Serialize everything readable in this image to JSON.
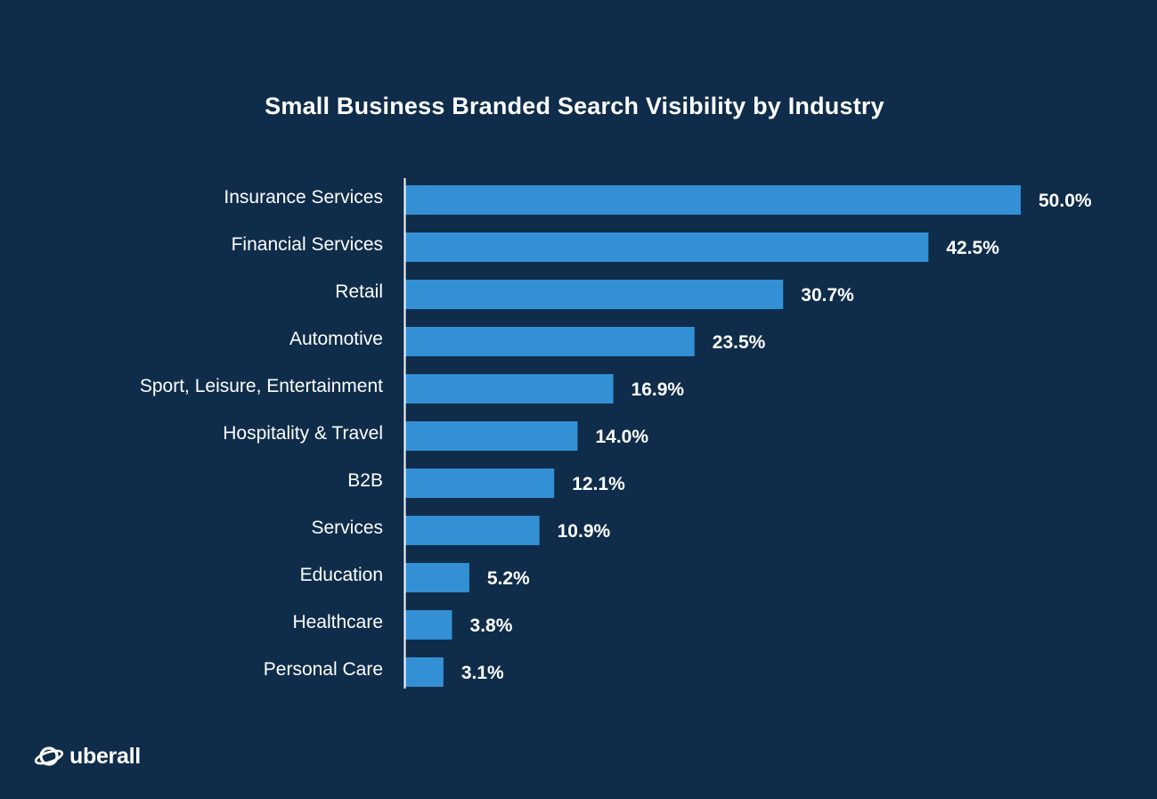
{
  "chart_data": {
    "type": "bar",
    "orientation": "horizontal",
    "title": "Small Business Branded Search Visibility by Industry",
    "xlabel": "",
    "ylabel": "",
    "xlim": [
      0,
      50
    ],
    "grid": false,
    "categories": [
      "Insurance Services",
      "Financial Services",
      "Retail",
      "Automotive",
      "Sport, Leisure, Entertainment",
      "Hospitality & Travel",
      "B2B",
      "Services",
      "Education",
      "Healthcare",
      "Personal Care"
    ],
    "values": [
      50.0,
      42.5,
      30.7,
      23.5,
      16.9,
      14.0,
      12.1,
      10.9,
      5.2,
      3.8,
      3.1
    ],
    "value_labels": [
      "50.0%",
      "42.5%",
      "30.7%",
      "23.5%",
      "16.9%",
      "14.0%",
      "12.1%",
      "10.9%",
      "5.2%",
      "3.8%",
      "3.1%"
    ],
    "bar_color": "#3390d4"
  },
  "colors": {
    "background": "#0f2d4a",
    "text": "#ffffff"
  },
  "brand": {
    "logo_icon": "ubersall-planet-icon",
    "logo_text": "uberall"
  }
}
